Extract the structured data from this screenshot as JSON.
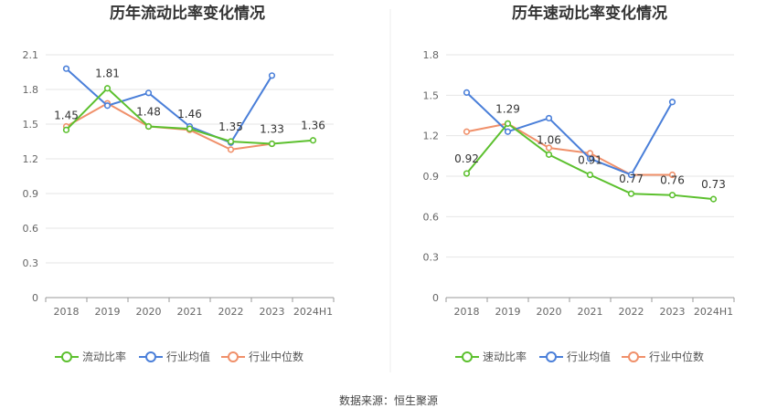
{
  "source": "数据来源：恒生聚源",
  "chart_data": [
    {
      "type": "line",
      "title": "历年流动比率变化情况",
      "categories": [
        "2018",
        "2019",
        "2020",
        "2021",
        "2022",
        "2023",
        "2024H1"
      ],
      "ylim": [
        0,
        2.1
      ],
      "yticks": [
        "0",
        "0.3",
        "0.6",
        "0.9",
        "1.2",
        "1.5",
        "1.8",
        "2.1"
      ],
      "grid": true,
      "legend_position": "bottom",
      "series": [
        {
          "name": "流动比率",
          "color": "#5cc02e",
          "values": [
            1.45,
            1.81,
            1.48,
            1.46,
            1.35,
            1.33,
            1.36
          ],
          "labels": [
            "1.45",
            "1.81",
            "1.48",
            "1.46",
            "1.35",
            "1.33",
            "1.36"
          ]
        },
        {
          "name": "行业均值",
          "color": "#4a7fd9",
          "values": [
            1.98,
            1.66,
            1.77,
            1.48,
            1.34,
            1.92,
            null
          ]
        },
        {
          "name": "行业中位数",
          "color": "#f0906a",
          "values": [
            1.48,
            1.68,
            1.48,
            1.45,
            1.28,
            1.33,
            null
          ]
        }
      ]
    },
    {
      "type": "line",
      "title": "历年速动比率变化情况",
      "categories": [
        "2018",
        "2019",
        "2020",
        "2021",
        "2022",
        "2023",
        "2024H1"
      ],
      "ylim": [
        0,
        1.8
      ],
      "yticks": [
        "0",
        "0.3",
        "0.6",
        "0.9",
        "1.2",
        "1.5",
        "1.8"
      ],
      "grid": true,
      "legend_position": "bottom",
      "series": [
        {
          "name": "速动比率",
          "color": "#5cc02e",
          "values": [
            0.92,
            1.29,
            1.06,
            0.91,
            0.77,
            0.76,
            0.73
          ],
          "labels": [
            "0.92",
            "1.29",
            "1.06",
            "0.91",
            "0.77",
            "0.76",
            "0.73"
          ]
        },
        {
          "name": "行业均值",
          "color": "#4a7fd9",
          "values": [
            1.52,
            1.23,
            1.33,
            1.03,
            0.91,
            1.45,
            null
          ]
        },
        {
          "name": "行业中位数",
          "color": "#f0906a",
          "values": [
            1.23,
            1.29,
            1.11,
            1.07,
            0.91,
            0.91,
            null
          ]
        }
      ]
    }
  ]
}
